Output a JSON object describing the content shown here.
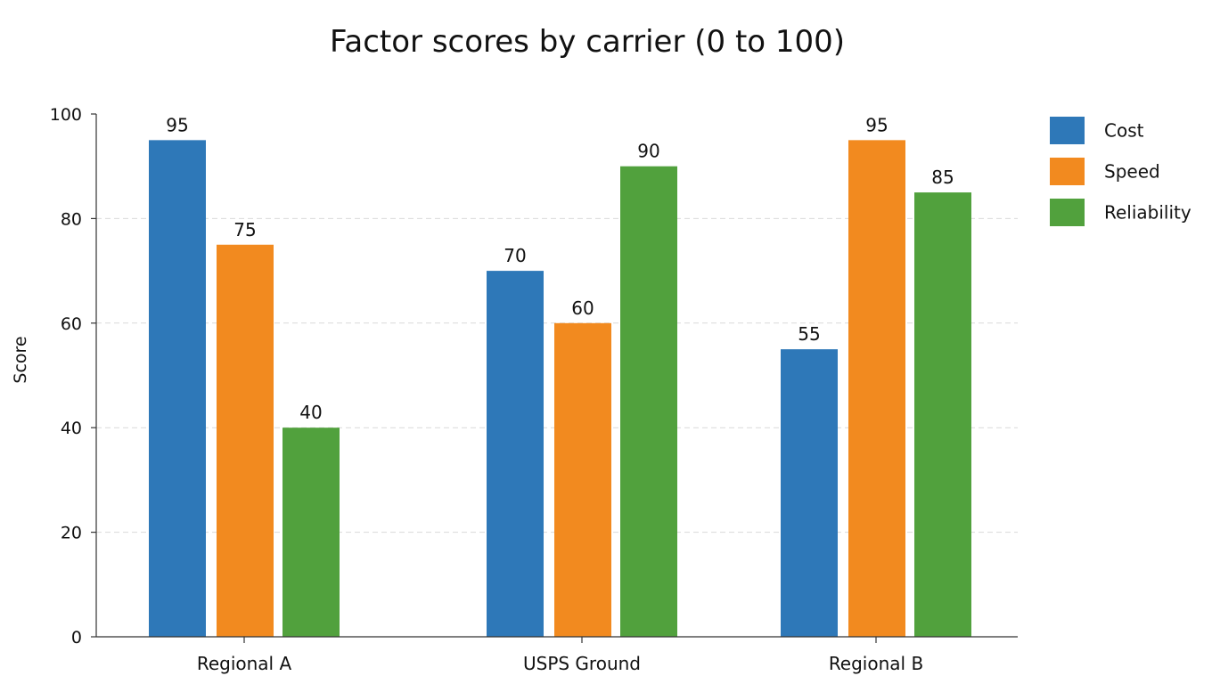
{
  "chart_data": {
    "type": "bar",
    "title": "Factor scores by carrier (0 to 100)",
    "xlabel": "",
    "ylabel": "Score",
    "ylim": [
      0,
      100
    ],
    "yticks": [
      0,
      20,
      40,
      60,
      80,
      100
    ],
    "grid": true,
    "legend_position": "top-right",
    "categories": [
      "Regional A",
      "USPS Ground",
      "Regional B"
    ],
    "series": [
      {
        "name": "Cost",
        "color": "#2e78b8",
        "values": [
          95,
          70,
          55
        ]
      },
      {
        "name": "Speed",
        "color": "#f28a1f",
        "values": [
          75,
          60,
          95
        ]
      },
      {
        "name": "Reliability",
        "color": "#51a13d",
        "values": [
          40,
          90,
          85
        ]
      }
    ]
  }
}
